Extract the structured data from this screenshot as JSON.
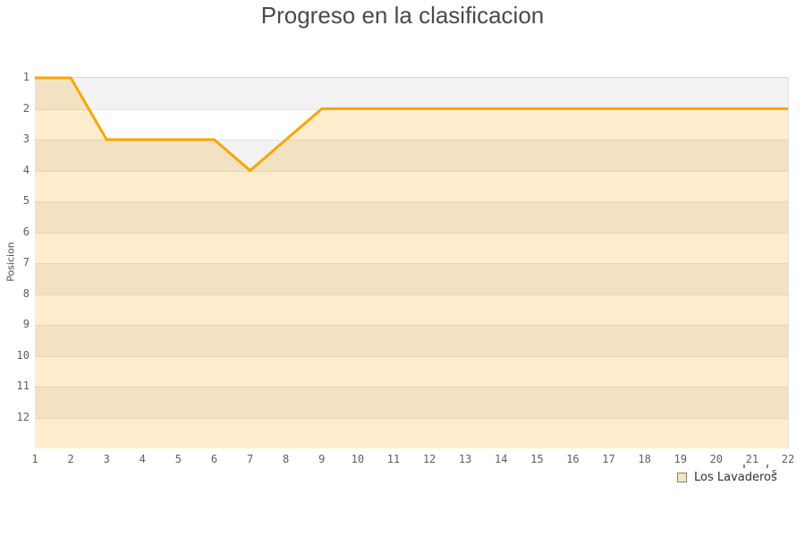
{
  "title": "Progreso en la clasificacion",
  "y_axis": {
    "title": "Posicion"
  },
  "legend": {
    "label": "Los Lavaderos",
    "trailing_fragment": "s"
  },
  "chart_data": {
    "type": "line",
    "title": "Progreso en la clasificacion",
    "xlabel": "",
    "ylabel": "Posicion",
    "x": [
      1,
      2,
      3,
      4,
      5,
      6,
      7,
      8,
      9,
      10,
      11,
      12,
      13,
      14,
      15,
      16,
      17,
      18,
      19,
      20,
      21,
      22
    ],
    "series": [
      {
        "name": "Los Lavaderos",
        "values": [
          1,
          1,
          3,
          3,
          3,
          3,
          4,
          3,
          2,
          2,
          2,
          2,
          2,
          2,
          2,
          2,
          2,
          2,
          2,
          2,
          2,
          2
        ]
      }
    ],
    "y_ticks": [
      1,
      2,
      3,
      4,
      5,
      6,
      7,
      8,
      9,
      10,
      11,
      12
    ],
    "ylim": [
      1,
      13
    ],
    "y_inverted": true,
    "grid": "horizontal-stripes",
    "legend_position": "bottom-right",
    "markers": false,
    "colors": {
      "line": "#F9A602",
      "area": "rgba(249,166,2,0.20)",
      "stripe_dark": "#F2F2F2",
      "stripe_light": "#FFFFFF",
      "gridline": "#E2E2E2",
      "plot_border": "#D4D4D4",
      "title_text": "#4A4A4A",
      "tick_text": "#5F5F5F",
      "legend_text": "#333333",
      "legend_swatch_fill": "#FAE3BC",
      "legend_swatch_border": "#808080"
    }
  }
}
